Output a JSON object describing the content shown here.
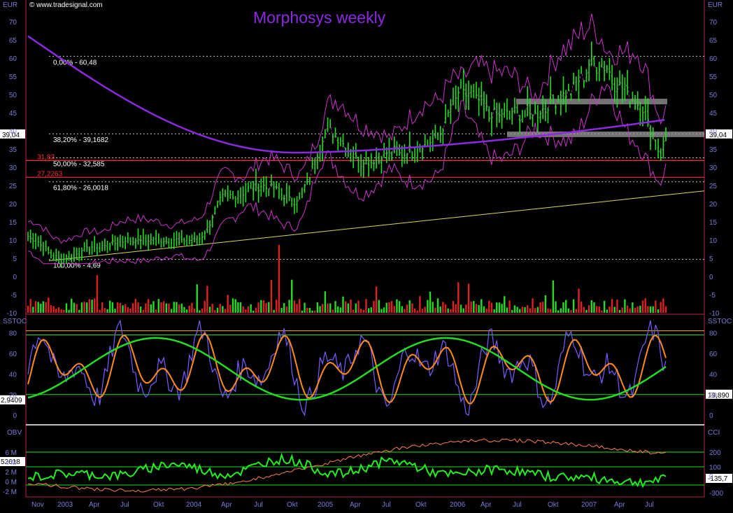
{
  "header": {
    "watermark": "© www.tradesignal.com",
    "title": "Morphosys weekly",
    "currency_left": "EUR",
    "currency_right": "EUR"
  },
  "colors": {
    "background": "#000000",
    "title": "#8a2be2",
    "axis_text": "#7b7bd8",
    "frame": "#c0204a",
    "candle_up": "#22dd22",
    "price_line": "#22ee22",
    "long_ma": "#8a2be2",
    "bollinger": "#cc33cc",
    "trendline": "#d8d860",
    "sr_line": "#ff3030",
    "fib_line": "#c8c8c8",
    "stoch_k": "#7a5cff",
    "stoch_d": "#ff8c1a",
    "stoch_ma": "#22dd22",
    "obv": "#22ee22",
    "cci": "#ff7f50"
  },
  "chart_data": [
    {
      "type": "line",
      "panel": "price",
      "y_ticks": [
        70,
        65,
        60,
        55,
        50,
        45,
        40,
        35,
        30,
        25,
        20,
        15,
        10,
        5,
        0,
        -5,
        -10
      ],
      "ylim": [
        -10,
        74
      ],
      "x": [
        "Nov",
        "2003",
        "Apr",
        "Jul",
        "Okt",
        "2004",
        "Apr",
        "Jul",
        "Okt",
        "2005",
        "Apr",
        "Jul",
        "Okt",
        "2006",
        "Apr",
        "Jul",
        "Okt",
        "2007",
        "Apr",
        "Jul"
      ],
      "series": [
        {
          "values": [
            11,
            5,
            8,
            10,
            10,
            10,
            22,
            25,
            21,
            40,
            32,
            34,
            37,
            50,
            44,
            45,
            50,
            59,
            50,
            34
          ]
        }
      ],
      "fibonacci_levels": [
        {
          "label": "0,00% - 60,48",
          "value": 60.48
        },
        {
          "label": "38,20% - 39,1682",
          "value": 39.1682
        },
        {
          "label": "50,00% - 32,585",
          "value": 32.585
        },
        {
          "label": "61,80% - 26,0018",
          "value": 26.0018
        },
        {
          "label": "100,00% - 4,69",
          "value": 4.69
        }
      ],
      "horizontal_lines": [
        {
          "label": "31,83",
          "value": 31.83
        },
        {
          "label": "27,2263",
          "value": 27.2263
        }
      ],
      "last_price_label": "39,04",
      "last_price": 39.04
    },
    {
      "type": "line",
      "panel": "stochastic",
      "label": "SSTOC",
      "y_ticks": [
        80,
        60,
        40,
        20,
        0
      ],
      "ylim": [
        -8,
        96
      ],
      "levels": [
        82,
        78,
        20
      ],
      "left_value_label": "2,9409",
      "right_value_label": "19,890"
    },
    {
      "type": "line",
      "panel": "obv_cci",
      "label_left": "OBV",
      "label_right": "CCI",
      "left_ticks": [
        "6 M",
        "4 M",
        "2 M",
        "0 M",
        "-2 M"
      ],
      "right_ticks": [
        "200",
        "100",
        "0",
        "-300"
      ],
      "left_value_label": "52618",
      "right_value_label": "-135,7"
    }
  ]
}
